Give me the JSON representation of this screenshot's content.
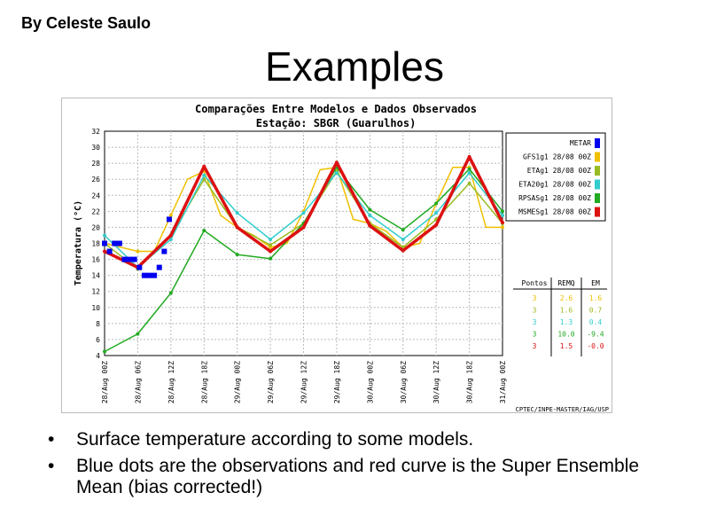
{
  "slide": {
    "author": "By Celeste Saulo",
    "title": "Examples",
    "bullets": [
      "Surface temperature according to some models.",
      "Blue dots are the observations and red curve is the Super Ensemble Mean (bias corrected!)"
    ],
    "bullet_glyph": "•"
  },
  "chart_data": {
    "type": "line",
    "title": "Comparações Entre Modelos e Dados Observados",
    "subtitle": "Estação: SBGR (Guarulhos)",
    "ylabel": "Temperatura (°C)",
    "xlabel": "",
    "ylim": [
      4,
      32
    ],
    "yticks": [
      4,
      6,
      8,
      10,
      12,
      14,
      16,
      18,
      20,
      22,
      24,
      26,
      28,
      30,
      32
    ],
    "grid": true,
    "legend_position": "right",
    "categories": [
      "28/Aug 00Z",
      "28/Aug 06Z",
      "28/Aug 12Z",
      "28/Aug 18Z",
      "29/Aug 00Z",
      "29/Aug 06Z",
      "29/Aug 12Z",
      "29/Aug 18Z",
      "30/Aug 00Z",
      "30/Aug 06Z",
      "30/Aug 12Z",
      "30/Aug 18Z",
      "31/Aug 00Z"
    ],
    "observations": {
      "name": "METAR",
      "color": "#0000ee",
      "points": [
        [
          0,
          18
        ],
        [
          0.15,
          17
        ],
        [
          0.3,
          18
        ],
        [
          0.45,
          18
        ],
        [
          0.6,
          16
        ],
        [
          0.75,
          16
        ],
        [
          0.9,
          16
        ],
        [
          1.05,
          15
        ],
        [
          1.2,
          14
        ],
        [
          1.35,
          14
        ],
        [
          1.5,
          14
        ],
        [
          1.65,
          15
        ],
        [
          1.8,
          17
        ],
        [
          1.95,
          21
        ]
      ]
    },
    "series": [
      {
        "name": "GFS1g1 28/08 00Z",
        "color": "#f0c000",
        "points": [
          [
            0,
            18
          ],
          [
            1,
            17
          ],
          [
            1.5,
            17
          ],
          [
            2,
            21.5
          ],
          [
            2.5,
            26
          ],
          [
            3,
            27
          ],
          [
            3.5,
            21.5
          ],
          [
            4,
            20
          ],
          [
            4.5,
            19
          ],
          [
            5,
            17.5
          ],
          [
            5.5,
            18
          ],
          [
            6,
            22
          ],
          [
            6.5,
            27.2
          ],
          [
            7,
            27.5
          ],
          [
            7.5,
            21
          ],
          [
            8,
            20.5
          ],
          [
            8.5,
            19.5
          ],
          [
            9,
            17.5
          ],
          [
            9.5,
            18
          ],
          [
            10,
            23
          ],
          [
            10.5,
            27.5
          ],
          [
            11,
            27.5
          ],
          [
            11.5,
            20
          ],
          [
            12,
            20
          ]
        ]
      },
      {
        "name": "ETAg1 28/08 00Z",
        "color": "#99bb22",
        "points": [
          [
            0,
            18
          ],
          [
            1,
            14.8
          ],
          [
            2,
            19
          ],
          [
            3,
            26
          ],
          [
            4,
            20
          ],
          [
            5,
            17.8
          ],
          [
            6,
            20.5
          ],
          [
            7,
            27
          ],
          [
            8,
            20.5
          ],
          [
            9,
            17.5
          ],
          [
            10,
            21
          ],
          [
            11,
            25.5
          ],
          [
            12,
            20.5
          ]
        ]
      },
      {
        "name": "ETA20g1 28/08 00Z",
        "color": "#33cccc",
        "points": [
          [
            0,
            19
          ],
          [
            1,
            15
          ],
          [
            2,
            18.5
          ],
          [
            3,
            26.5
          ],
          [
            4,
            21.8
          ],
          [
            5,
            18.5
          ],
          [
            6,
            21.8
          ],
          [
            7,
            26.8
          ],
          [
            8,
            21.5
          ],
          [
            9,
            18.5
          ],
          [
            10,
            21.8
          ],
          [
            11,
            26.8
          ],
          [
            12,
            21.5
          ]
        ]
      },
      {
        "name": "RPSASg1 28/08 00Z",
        "color": "#22aa22",
        "points": [
          [
            0,
            4.5
          ],
          [
            1,
            6.7
          ],
          [
            2,
            11.8
          ],
          [
            3,
            19.6
          ],
          [
            4,
            16.6
          ],
          [
            5,
            16.1
          ],
          [
            6,
            20.5
          ],
          [
            7,
            27.5
          ],
          [
            8,
            22.2
          ],
          [
            9,
            19.7
          ],
          [
            10,
            23
          ],
          [
            11,
            27.3
          ],
          [
            12,
            22
          ]
        ]
      },
      {
        "name": "MSMESg1 28/08 00Z",
        "color": "#dd1111",
        "points": [
          [
            0,
            17
          ],
          [
            1,
            15
          ],
          [
            2,
            19
          ],
          [
            3,
            27.6
          ],
          [
            4,
            20
          ],
          [
            5,
            17
          ],
          [
            6,
            20
          ],
          [
            7,
            28.1
          ],
          [
            8,
            20.2
          ],
          [
            9,
            17.1
          ],
          [
            10,
            20.3
          ],
          [
            11,
            28.8
          ],
          [
            12,
            20.6
          ]
        ]
      }
    ],
    "stats": {
      "headers": [
        "Pontos",
        "REMQ",
        "EM"
      ],
      "rows": [
        {
          "pontos": "3",
          "remq": "2.6",
          "em": "1.6",
          "color": "#f0c000"
        },
        {
          "pontos": "3",
          "remq": "1.6",
          "em": "0.7",
          "color": "#99bb22"
        },
        {
          "pontos": "3",
          "remq": "1.3",
          "em": "0.4",
          "color": "#33cccc"
        },
        {
          "pontos": "3",
          "remq": "10.0",
          "em": "-9.4",
          "color": "#22aa22"
        },
        {
          "pontos": "3",
          "remq": "1.5",
          "em": "-0.0",
          "color": "#dd1111"
        }
      ]
    },
    "credit": "CPTEC/INPE-MASTER/IAG/USP"
  }
}
